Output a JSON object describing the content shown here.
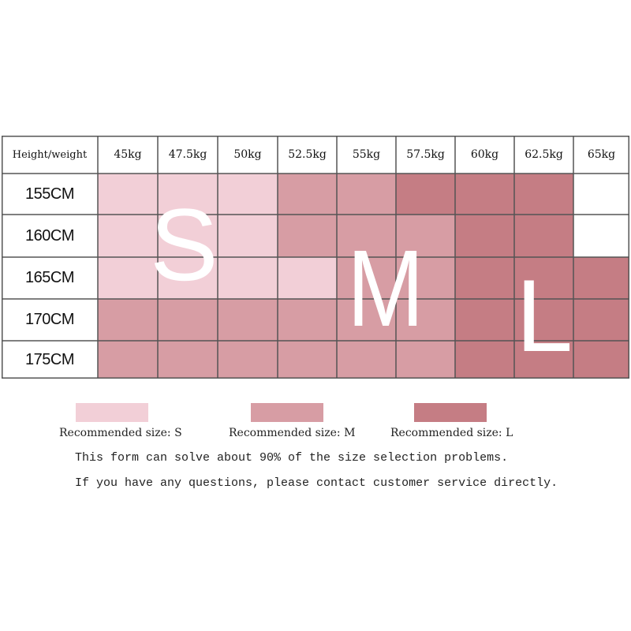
{
  "size_chart": {
    "corner_label": "Height/weight",
    "weights": [
      "45kg",
      "47.5kg",
      "50kg",
      "52.5kg",
      "55kg",
      "57.5kg",
      "60kg",
      "62.5kg",
      "65kg"
    ],
    "heights": [
      "155CM",
      "160CM",
      "165CM",
      "170CM",
      "175CM"
    ],
    "cells": [
      [
        "S",
        "S",
        "S",
        "M",
        "M",
        "L",
        "L",
        "L",
        ""
      ],
      [
        "S",
        "S",
        "S",
        "M",
        "M",
        "M",
        "L",
        "L",
        ""
      ],
      [
        "S",
        "S",
        "S",
        "S",
        "M",
        "M",
        "L",
        "L",
        "L"
      ],
      [
        "M",
        "M",
        "M",
        "M",
        "M",
        "M",
        "L",
        "L",
        "L"
      ],
      [
        "M",
        "M",
        "M",
        "M",
        "M",
        "M",
        "L",
        "L",
        "L"
      ]
    ],
    "zone_letters": {
      "S": "S",
      "M": "M",
      "L": "L"
    }
  },
  "colors": {
    "S": "#f2cfd7",
    "M": "#d79da4",
    "L": "#c57d84",
    "empty": "#ffffff",
    "grid": "#555555"
  },
  "legend": [
    {
      "size": "S",
      "label": "Recommended size: S"
    },
    {
      "size": "M",
      "label": "Recommended size: M"
    },
    {
      "size": "L",
      "label": "Recommended size: L"
    }
  ],
  "notes": {
    "line1": "This form can solve about 90% of the size selection problems.",
    "line2": "If you have any questions, please contact customer service directly."
  }
}
